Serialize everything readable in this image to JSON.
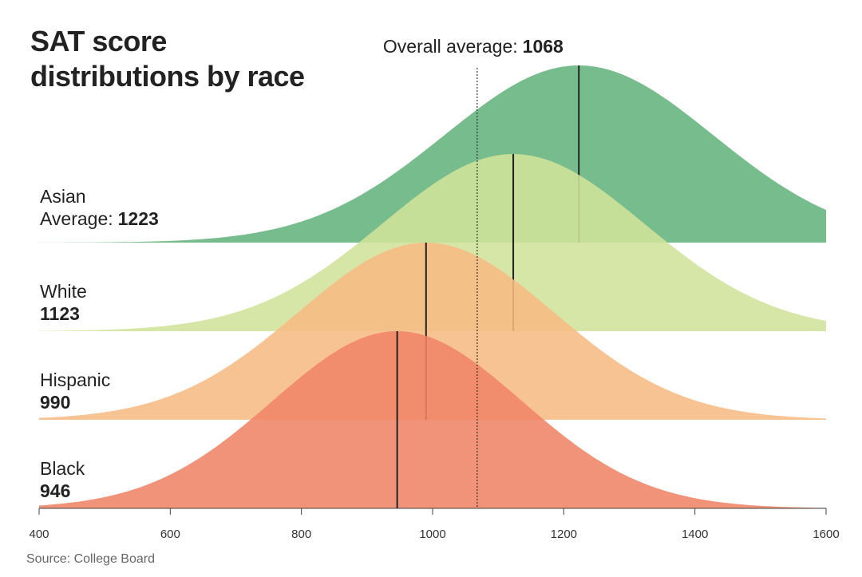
{
  "chart_data": {
    "type": "ridgeline",
    "title": "SAT score distributions by race",
    "average_label": "Average:",
    "overall_average": {
      "label": "Overall average:",
      "value": 1068
    },
    "source": "Source: College Board",
    "xlim": [
      400,
      1600
    ],
    "xticks": [
      400,
      600,
      800,
      1000,
      1200,
      1400,
      1600
    ],
    "series": [
      {
        "name": "Asian",
        "color": "#63b37c",
        "mean": 1223,
        "sd": 205
      },
      {
        "name": "White",
        "color": "#d0e39a",
        "mean": 1123,
        "sd": 200
      },
      {
        "name": "Hispanic",
        "color": "#f7bb84",
        "mean": 990,
        "sd": 195
      },
      {
        "name": "Black",
        "color": "#ef8466",
        "mean": 946,
        "sd": 190
      }
    ]
  }
}
